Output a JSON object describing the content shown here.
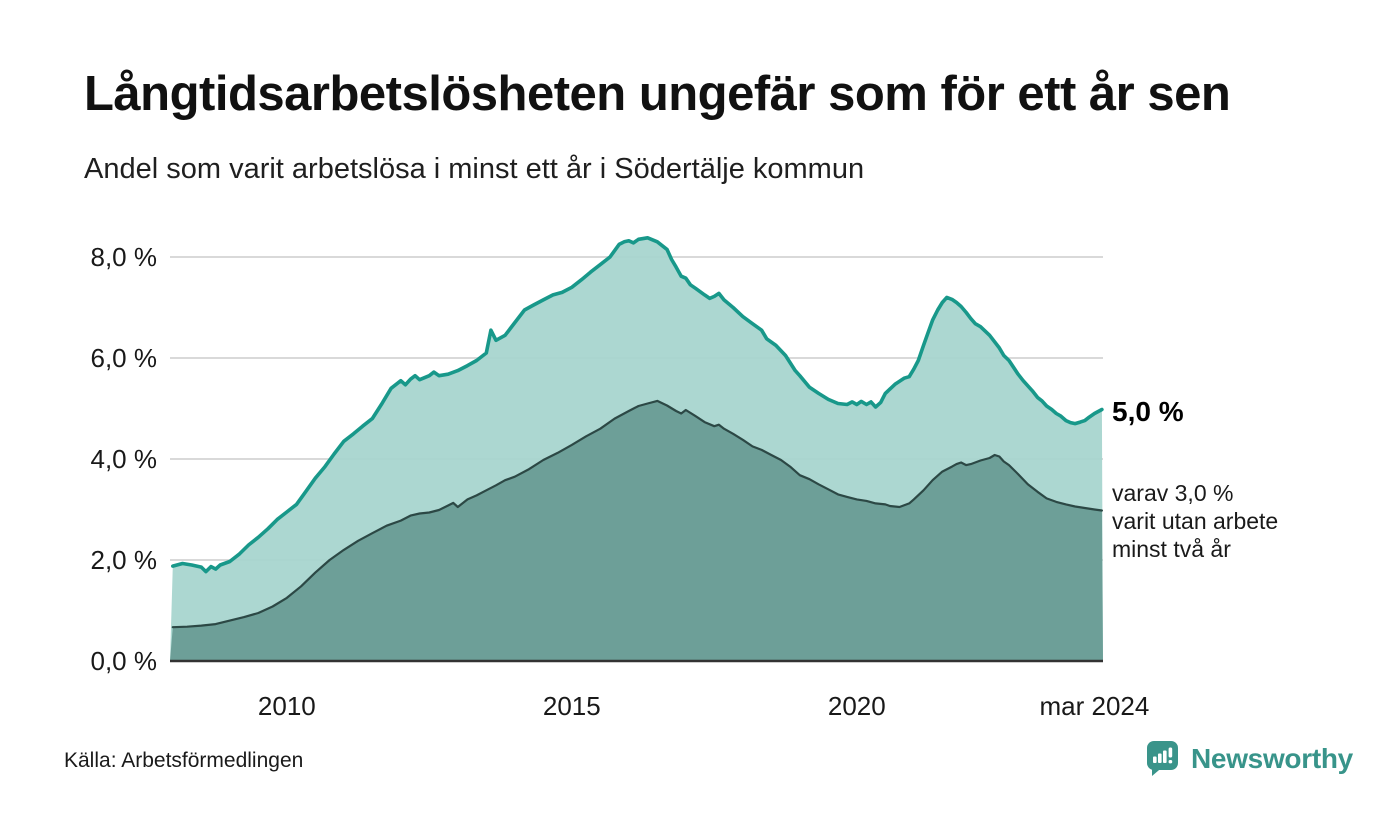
{
  "header": {
    "title": "Långtidsarbetslösheten ungefär som för ett år sen",
    "subtitle": "Andel som varit arbetslösa i minst ett år i Södertälje kommun"
  },
  "chart_data": {
    "type": "area",
    "title": "Långtidsarbetslösheten ungefär som för ett år sen",
    "subtitle": "Andel som varit arbetslösa i minst ett år i Södertälje kommun",
    "unit": "%",
    "xlim": [
      2007.95,
      2024.32
    ],
    "ylim": [
      0,
      8.4
    ],
    "grid": true,
    "x_ticks": [
      {
        "label": "2010",
        "t": 2010
      },
      {
        "label": "2015",
        "t": 2015
      },
      {
        "label": "2020",
        "t": 2020
      },
      {
        "label": "mar 2024",
        "t": 2024.17
      }
    ],
    "y_ticks": [
      {
        "label": "8,0 %",
        "v": 8
      },
      {
        "label": "6,0 %",
        "v": 6
      },
      {
        "label": "4,0 %",
        "v": 4
      },
      {
        "label": "2,0 %",
        "v": 2
      },
      {
        "label": "0,0 %",
        "v": 0
      }
    ],
    "colors": {
      "line_1yr": "#18988a",
      "fill_1yr": "#a6d4cd",
      "line_2yr": "#2c4845",
      "fill_2yr": "#689b93",
      "gridline": "#d9d9d9",
      "baseline": "#333333"
    },
    "series": [
      {
        "name": "minst ett år",
        "last_value_label": "5,0 %",
        "points": [
          [
            2008.0,
            1.88
          ],
          [
            2008.17,
            1.93
          ],
          [
            2008.33,
            1.9
          ],
          [
            2008.5,
            1.86
          ],
          [
            2008.58,
            1.77
          ],
          [
            2008.67,
            1.87
          ],
          [
            2008.75,
            1.82
          ],
          [
            2008.83,
            1.9
          ],
          [
            2009.0,
            1.97
          ],
          [
            2009.17,
            2.12
          ],
          [
            2009.33,
            2.3
          ],
          [
            2009.5,
            2.45
          ],
          [
            2009.67,
            2.62
          ],
          [
            2009.83,
            2.8
          ],
          [
            2010.0,
            2.95
          ],
          [
            2010.17,
            3.1
          ],
          [
            2010.33,
            3.35
          ],
          [
            2010.5,
            3.62
          ],
          [
            2010.67,
            3.85
          ],
          [
            2010.83,
            4.1
          ],
          [
            2011.0,
            4.35
          ],
          [
            2011.17,
            4.5
          ],
          [
            2011.33,
            4.65
          ],
          [
            2011.5,
            4.8
          ],
          [
            2011.67,
            5.1
          ],
          [
            2011.83,
            5.4
          ],
          [
            2012.0,
            5.55
          ],
          [
            2012.08,
            5.47
          ],
          [
            2012.17,
            5.58
          ],
          [
            2012.25,
            5.65
          ],
          [
            2012.33,
            5.57
          ],
          [
            2012.5,
            5.65
          ],
          [
            2012.58,
            5.72
          ],
          [
            2012.67,
            5.65
          ],
          [
            2012.83,
            5.68
          ],
          [
            2013.0,
            5.75
          ],
          [
            2013.17,
            5.85
          ],
          [
            2013.33,
            5.95
          ],
          [
            2013.5,
            6.1
          ],
          [
            2013.58,
            6.55
          ],
          [
            2013.67,
            6.35
          ],
          [
            2013.83,
            6.45
          ],
          [
            2014.0,
            6.7
          ],
          [
            2014.17,
            6.95
          ],
          [
            2014.33,
            7.05
          ],
          [
            2014.5,
            7.15
          ],
          [
            2014.67,
            7.25
          ],
          [
            2014.83,
            7.3
          ],
          [
            2015.0,
            7.4
          ],
          [
            2015.17,
            7.55
          ],
          [
            2015.33,
            7.7
          ],
          [
            2015.5,
            7.85
          ],
          [
            2015.67,
            8.0
          ],
          [
            2015.83,
            8.25
          ],
          [
            2015.92,
            8.3
          ],
          [
            2016.0,
            8.32
          ],
          [
            2016.08,
            8.28
          ],
          [
            2016.17,
            8.35
          ],
          [
            2016.33,
            8.38
          ],
          [
            2016.5,
            8.3
          ],
          [
            2016.67,
            8.15
          ],
          [
            2016.75,
            7.95
          ],
          [
            2016.83,
            7.8
          ],
          [
            2016.92,
            7.62
          ],
          [
            2017.0,
            7.58
          ],
          [
            2017.08,
            7.45
          ],
          [
            2017.17,
            7.38
          ],
          [
            2017.33,
            7.25
          ],
          [
            2017.42,
            7.18
          ],
          [
            2017.5,
            7.22
          ],
          [
            2017.58,
            7.28
          ],
          [
            2017.67,
            7.15
          ],
          [
            2017.83,
            7.0
          ],
          [
            2018.0,
            6.82
          ],
          [
            2018.17,
            6.68
          ],
          [
            2018.33,
            6.55
          ],
          [
            2018.42,
            6.38
          ],
          [
            2018.58,
            6.25
          ],
          [
            2018.75,
            6.05
          ],
          [
            2018.92,
            5.75
          ],
          [
            2019.0,
            5.65
          ],
          [
            2019.17,
            5.42
          ],
          [
            2019.33,
            5.3
          ],
          [
            2019.5,
            5.18
          ],
          [
            2019.67,
            5.1
          ],
          [
            2019.83,
            5.08
          ],
          [
            2019.92,
            5.13
          ],
          [
            2020.0,
            5.08
          ],
          [
            2020.08,
            5.14
          ],
          [
            2020.17,
            5.08
          ],
          [
            2020.25,
            5.13
          ],
          [
            2020.33,
            5.03
          ],
          [
            2020.42,
            5.12
          ],
          [
            2020.5,
            5.3
          ],
          [
            2020.67,
            5.48
          ],
          [
            2020.83,
            5.6
          ],
          [
            2020.92,
            5.63
          ],
          [
            2021.0,
            5.78
          ],
          [
            2021.08,
            5.95
          ],
          [
            2021.17,
            6.25
          ],
          [
            2021.25,
            6.5
          ],
          [
            2021.33,
            6.75
          ],
          [
            2021.42,
            6.95
          ],
          [
            2021.5,
            7.1
          ],
          [
            2021.58,
            7.2
          ],
          [
            2021.67,
            7.16
          ],
          [
            2021.75,
            7.1
          ],
          [
            2021.83,
            7.02
          ],
          [
            2021.92,
            6.9
          ],
          [
            2022.0,
            6.78
          ],
          [
            2022.08,
            6.68
          ],
          [
            2022.17,
            6.62
          ],
          [
            2022.33,
            6.45
          ],
          [
            2022.5,
            6.2
          ],
          [
            2022.58,
            6.05
          ],
          [
            2022.67,
            5.95
          ],
          [
            2022.83,
            5.68
          ],
          [
            2022.92,
            5.55
          ],
          [
            2023.0,
            5.45
          ],
          [
            2023.08,
            5.35
          ],
          [
            2023.17,
            5.22
          ],
          [
            2023.25,
            5.15
          ],
          [
            2023.33,
            5.05
          ],
          [
            2023.42,
            4.98
          ],
          [
            2023.5,
            4.9
          ],
          [
            2023.58,
            4.85
          ],
          [
            2023.67,
            4.76
          ],
          [
            2023.75,
            4.72
          ],
          [
            2023.83,
            4.7
          ],
          [
            2023.92,
            4.73
          ],
          [
            2024.0,
            4.76
          ],
          [
            2024.08,
            4.83
          ],
          [
            2024.17,
            4.9
          ],
          [
            2024.3,
            4.98
          ]
        ]
      },
      {
        "name": "minst två år",
        "last_value_label": "3,0 %",
        "points": [
          [
            2008.0,
            0.67
          ],
          [
            2008.25,
            0.68
          ],
          [
            2008.5,
            0.7
          ],
          [
            2008.75,
            0.73
          ],
          [
            2009.0,
            0.8
          ],
          [
            2009.25,
            0.87
          ],
          [
            2009.5,
            0.95
          ],
          [
            2009.75,
            1.08
          ],
          [
            2010.0,
            1.25
          ],
          [
            2010.25,
            1.48
          ],
          [
            2010.5,
            1.75
          ],
          [
            2010.75,
            2.0
          ],
          [
            2011.0,
            2.2
          ],
          [
            2011.25,
            2.38
          ],
          [
            2011.5,
            2.53
          ],
          [
            2011.75,
            2.68
          ],
          [
            2012.0,
            2.78
          ],
          [
            2012.17,
            2.88
          ],
          [
            2012.33,
            2.92
          ],
          [
            2012.5,
            2.94
          ],
          [
            2012.67,
            2.99
          ],
          [
            2012.83,
            3.08
          ],
          [
            2012.92,
            3.13
          ],
          [
            2013.0,
            3.05
          ],
          [
            2013.17,
            3.2
          ],
          [
            2013.33,
            3.28
          ],
          [
            2013.5,
            3.38
          ],
          [
            2013.67,
            3.48
          ],
          [
            2013.83,
            3.58
          ],
          [
            2014.0,
            3.65
          ],
          [
            2014.25,
            3.8
          ],
          [
            2014.5,
            3.98
          ],
          [
            2014.75,
            4.12
          ],
          [
            2015.0,
            4.28
          ],
          [
            2015.25,
            4.45
          ],
          [
            2015.5,
            4.6
          ],
          [
            2015.75,
            4.8
          ],
          [
            2016.0,
            4.95
          ],
          [
            2016.17,
            5.05
          ],
          [
            2016.33,
            5.1
          ],
          [
            2016.5,
            5.15
          ],
          [
            2016.67,
            5.06
          ],
          [
            2016.83,
            4.95
          ],
          [
            2016.92,
            4.9
          ],
          [
            2017.0,
            4.97
          ],
          [
            2017.17,
            4.85
          ],
          [
            2017.33,
            4.73
          ],
          [
            2017.5,
            4.65
          ],
          [
            2017.58,
            4.68
          ],
          [
            2017.67,
            4.6
          ],
          [
            2017.83,
            4.5
          ],
          [
            2018.0,
            4.38
          ],
          [
            2018.17,
            4.25
          ],
          [
            2018.33,
            4.18
          ],
          [
            2018.5,
            4.08
          ],
          [
            2018.67,
            3.98
          ],
          [
            2018.83,
            3.85
          ],
          [
            2019.0,
            3.68
          ],
          [
            2019.17,
            3.6
          ],
          [
            2019.33,
            3.5
          ],
          [
            2019.5,
            3.4
          ],
          [
            2019.67,
            3.3
          ],
          [
            2019.83,
            3.25
          ],
          [
            2020.0,
            3.2
          ],
          [
            2020.17,
            3.17
          ],
          [
            2020.33,
            3.12
          ],
          [
            2020.5,
            3.1
          ],
          [
            2020.58,
            3.07
          ],
          [
            2020.75,
            3.05
          ],
          [
            2020.92,
            3.12
          ],
          [
            2021.0,
            3.2
          ],
          [
            2021.17,
            3.38
          ],
          [
            2021.33,
            3.58
          ],
          [
            2021.5,
            3.75
          ],
          [
            2021.67,
            3.85
          ],
          [
            2021.75,
            3.9
          ],
          [
            2021.83,
            3.93
          ],
          [
            2021.92,
            3.88
          ],
          [
            2022.0,
            3.9
          ],
          [
            2022.17,
            3.97
          ],
          [
            2022.33,
            4.02
          ],
          [
            2022.42,
            4.08
          ],
          [
            2022.5,
            4.05
          ],
          [
            2022.58,
            3.95
          ],
          [
            2022.67,
            3.88
          ],
          [
            2022.83,
            3.7
          ],
          [
            2023.0,
            3.5
          ],
          [
            2023.17,
            3.35
          ],
          [
            2023.33,
            3.22
          ],
          [
            2023.5,
            3.15
          ],
          [
            2023.67,
            3.1
          ],
          [
            2023.83,
            3.06
          ],
          [
            2024.0,
            3.03
          ],
          [
            2024.17,
            3.0
          ],
          [
            2024.3,
            2.98
          ]
        ]
      }
    ],
    "annotations": {
      "primary": "5,0 %",
      "secondary_lines": [
        "varav 3,0 %",
        "varit utan arbete",
        "minst två år"
      ]
    },
    "legend_position": "none"
  },
  "footer": {
    "source": "Källa: Arbetsförmedlingen",
    "brand": "Newsworthy",
    "brand_color": "#38948a"
  }
}
